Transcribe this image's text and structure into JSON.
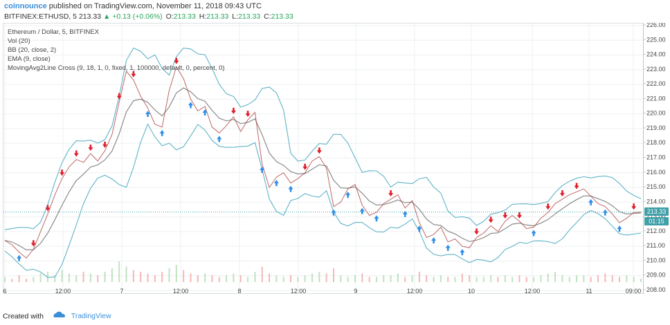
{
  "header": {
    "brand": "coinnounce",
    "published": "published on TradingView.com, November 11, 2018 09:43 UTC",
    "symbol": "BITFINEX:ETHUSD, 5",
    "last": "213.33",
    "change": "▲ +0.13 (+0.06%)",
    "o_label": "O:",
    "o": "213.33",
    "h_label": "H:",
    "h": "213.33",
    "l_label": "L:",
    "l": "213.33",
    "c_label": "C:",
    "c": "213.33"
  },
  "legend": {
    "title": "Ethereum / Dollar, 5, BITFINEX",
    "vol": "Vol (20)",
    "bb": "BB (20, close, 2)",
    "ema": "EMA (9, close)",
    "mac": "MovingAvg2Line Cross (9, 18, 1, 0, fixed, 1, 100000, default, 0, percent, 0)"
  },
  "badges": {
    "price": "213.33",
    "countdown": "01:15"
  },
  "footer": {
    "created": "Created with",
    "tv": "TradingView"
  },
  "colors": {
    "up_arrow": "#2e8ee8",
    "down_arrow": "#e01e2a",
    "band": "#5fb3c6",
    "price_line": "#3fa0a8",
    "up_text": "#26a65b"
  },
  "chart_data": {
    "type": "line",
    "y_ticks": [
      "226.00",
      "225.00",
      "224.00",
      "223.00",
      "222.00",
      "221.00",
      "220.00",
      "219.00",
      "218.00",
      "217.00",
      "216.00",
      "215.00",
      "214.00",
      "213.00",
      "212.00",
      "211.00",
      "210.00",
      "209.00",
      "208.00"
    ],
    "x_ticks": [
      "6",
      "12:00",
      "7",
      "12:00",
      "8",
      "12:00",
      "9",
      "12:00",
      "10",
      "12:00",
      "11",
      "09:00"
    ],
    "ylim": [
      208,
      226
    ],
    "close": [
      211.4,
      211.1,
      210.6,
      210.2,
      210.8,
      212.0,
      213.2,
      214.5,
      215.6,
      216.4,
      216.9,
      216.7,
      217.3,
      216.8,
      217.5,
      218.6,
      220.8,
      222.9,
      222.3,
      221.2,
      220.4,
      219.3,
      219.1,
      221.6,
      223.2,
      222.4,
      221.0,
      220.2,
      220.5,
      219.1,
      218.7,
      219.2,
      219.8,
      218.8,
      219.6,
      220.1,
      216.6,
      215.0,
      215.7,
      216.0,
      215.3,
      215.6,
      216.0,
      216.8,
      217.1,
      216.3,
      213.7,
      214.0,
      214.9,
      215.2,
      213.8,
      213.1,
      213.3,
      213.9,
      214.2,
      214.5,
      213.6,
      214.1,
      212.6,
      211.6,
      211.8,
      212.3,
      211.3,
      211.5,
      211.0,
      210.9,
      211.6,
      211.9,
      212.4,
      212.0,
      212.7,
      213.1,
      212.7,
      212.2,
      212.3,
      212.9,
      213.3,
      213.9,
      214.2,
      214.5,
      214.7,
      214.9,
      214.4,
      213.9,
      213.7,
      213.2,
      212.6,
      212.9,
      213.3,
      213.33
    ],
    "volume": [
      3,
      2,
      4,
      2,
      3,
      5,
      6,
      4,
      7,
      5,
      4,
      6,
      5,
      4,
      6,
      8,
      12,
      9,
      7,
      6,
      5,
      4,
      6,
      8,
      10,
      7,
      5,
      4,
      5,
      4,
      3,
      4,
      5,
      4,
      3,
      6,
      9,
      5,
      4,
      3,
      4,
      3,
      4,
      5,
      6,
      5,
      8,
      4,
      3,
      4,
      5,
      3,
      3,
      4,
      4,
      5,
      3,
      4,
      6,
      4,
      3,
      4,
      3,
      3,
      5,
      4,
      3,
      3,
      4,
      3,
      4,
      3,
      4,
      3,
      3,
      4,
      5,
      6,
      4,
      3,
      4,
      4,
      3,
      4,
      5,
      4,
      3,
      4,
      3,
      2
    ]
  }
}
